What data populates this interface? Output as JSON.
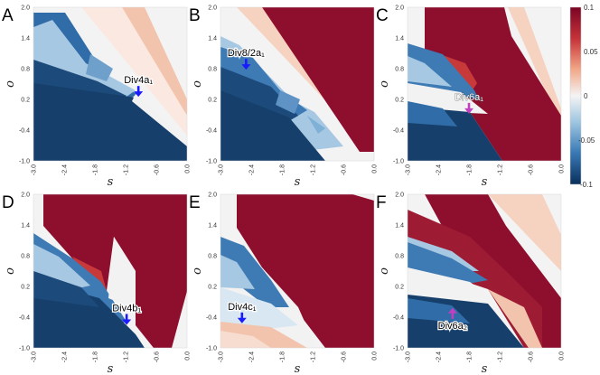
{
  "chart_data": [
    {
      "type": "heatmap",
      "panel_label": "A",
      "xlabel": "s",
      "ylabel": "o",
      "xlim": [
        -3.0,
        0.0
      ],
      "ylim": [
        -1.0,
        2.0
      ],
      "xticks": [
        "-3.0",
        "-2.4",
        "-1.8",
        "-1.2",
        "-0.6",
        "0.0"
      ],
      "yticks": [
        "2.0",
        "1.4",
        "0.8",
        "0.2",
        "-0.4",
        "-1.0"
      ],
      "annotations": [
        {
          "text": "Div4a₁",
          "x": -0.95,
          "y": 0.25,
          "arrow": "down",
          "color": "#1a1aff"
        }
      ]
    },
    {
      "type": "heatmap",
      "panel_label": "B",
      "xlabel": "s",
      "ylabel": "o",
      "xlim": [
        -3.0,
        0.0
      ],
      "ylim": [
        -1.0,
        2.0
      ],
      "xticks": [
        "-3.0",
        "-2.4",
        "-1.8",
        "-1.2",
        "-0.6",
        "0.0"
      ],
      "yticks": [
        "2.0",
        "1.4",
        "0.8",
        "0.2",
        "-0.4",
        "-1.0"
      ],
      "annotations": [
        {
          "text": "Div8/2a₁",
          "x": -2.5,
          "y": 0.78,
          "arrow": "down",
          "color": "#1a1aff"
        }
      ]
    },
    {
      "type": "heatmap",
      "panel_label": "C",
      "xlabel": "s",
      "ylabel": "o",
      "xlim": [
        -3.0,
        0.0
      ],
      "ylim": [
        -1.0,
        2.0
      ],
      "xticks": [
        "-3.0",
        "-2.4",
        "-1.8",
        "-1.2",
        "-0.6",
        "0.0"
      ],
      "yticks": [
        "2.0",
        "1.4",
        "0.8",
        "0.2",
        "-0.4",
        "-1.0"
      ],
      "annotations": [
        {
          "text": "Div6a₁",
          "x": -1.8,
          "y": -0.08,
          "arrow": "down",
          "color": "#c040c0"
        }
      ]
    },
    {
      "type": "heatmap",
      "panel_label": "D",
      "xlabel": "s",
      "ylabel": "o",
      "xlim": [
        -3.0,
        0.0
      ],
      "ylim": [
        -1.0,
        2.0
      ],
      "xticks": [
        "-3.0",
        "-2.4",
        "-1.8",
        "-1.2",
        "-0.6",
        "0.0"
      ],
      "yticks": [
        "2.0",
        "1.4",
        "0.8",
        "0.2",
        "-0.4",
        "-1.0"
      ],
      "annotations": [
        {
          "text": "Div4b₁",
          "x": -1.18,
          "y": -0.55,
          "arrow": "down",
          "color": "#1a1aff"
        }
      ]
    },
    {
      "type": "heatmap",
      "panel_label": "E",
      "xlabel": "s",
      "ylabel": "o",
      "xlim": [
        -3.0,
        0.0
      ],
      "ylim": [
        -1.0,
        2.0
      ],
      "xticks": [
        "-3.0",
        "-2.4",
        "-1.8",
        "-1.2",
        "-0.6",
        "0.0"
      ],
      "yticks": [
        "2.0",
        "1.4",
        "0.8",
        "0.2",
        "-0.4",
        "-1.0"
      ],
      "annotations": [
        {
          "text": "Div4c₁",
          "x": -2.58,
          "y": -0.52,
          "arrow": "down",
          "color": "#1a1aff"
        }
      ]
    },
    {
      "type": "heatmap",
      "panel_label": "F",
      "xlabel": "s",
      "ylabel": "o",
      "xlim": [
        -3.0,
        0.0
      ],
      "ylim": [
        -1.0,
        2.0
      ],
      "xticks": [
        "-3.0",
        "-2.4",
        "-1.8",
        "-1.2",
        "-0.6",
        "0.0"
      ],
      "yticks": [
        "2.0",
        "1.4",
        "0.8",
        "0.2",
        "-0.4",
        "-1.0"
      ],
      "annotations": [
        {
          "text": "Div6a₂",
          "x": -2.12,
          "y": -0.22,
          "arrow": "up",
          "color": "#c040c0"
        }
      ]
    }
  ],
  "colorbar": {
    "ticks": [
      "0.1",
      "0.05",
      "0",
      "-0.05",
      "-0.1"
    ],
    "range": [
      -0.1,
      0.1
    ],
    "colors": {
      "max": "#8b0a2a",
      "mid": "#f2f2f2",
      "min": "#0d3b66"
    }
  },
  "colors": {
    "dark_red": "#8e0e2d",
    "light_red": "#f1b9a0",
    "pale_red": "#f7ddd0",
    "dark_blue": "#163f6b",
    "mid_blue": "#3e7ab4",
    "light_blue": "#a6c8e2",
    "neutral": "#f3f3f3",
    "white": "#ffffff"
  }
}
